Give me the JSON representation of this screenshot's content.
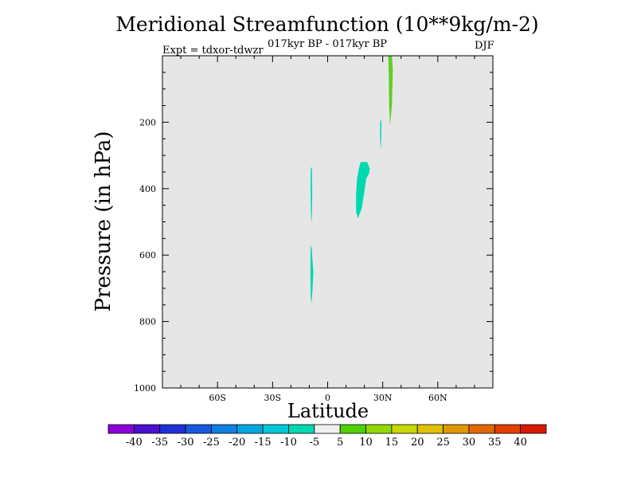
{
  "chart_data": {
    "type": "heatmap",
    "title": "Meridional Streamfunction (10**9kg/m-2)",
    "subtitle": "017kyr BP - 017kyr BP",
    "experiment_label": "Expt = tdxor-tdwzr",
    "season_label": "DJF",
    "xlabel": "Latitude",
    "ylabel": "Pressure (in hPa)",
    "x_ticks": [
      {
        "value": -60,
        "label": "60S"
      },
      {
        "value": -30,
        "label": "30S"
      },
      {
        "value": 0,
        "label": "0"
      },
      {
        "value": 30,
        "label": "30N"
      },
      {
        "value": 60,
        "label": "60N"
      }
    ],
    "y_ticks": [
      {
        "value": 200,
        "label": "200"
      },
      {
        "value": 400,
        "label": "400"
      },
      {
        "value": 600,
        "label": "600"
      },
      {
        "value": 800,
        "label": "800"
      },
      {
        "value": 1000,
        "label": "1000"
      }
    ],
    "xlim": [
      -90,
      90
    ],
    "ylim": [
      1000,
      0
    ],
    "background_color": "#e6e6e6",
    "colorbar": {
      "labels": [
        "-40",
        "-35",
        "-30",
        "-25",
        "-20",
        "-15",
        "-10",
        "-5",
        "5",
        "10",
        "15",
        "20",
        "25",
        "30",
        "35",
        "40"
      ],
      "colors": [
        "#8a00d8",
        "#4a10d0",
        "#2030d8",
        "#1858e0",
        "#1080e0",
        "#00a8e0",
        "#00c8d8",
        "#00d8b0",
        "#f0f0f0",
        "#50d000",
        "#90d800",
        "#c8d800",
        "#e0c000",
        "#e09800",
        "#e06800",
        "#e04000",
        "#d81800"
      ]
    },
    "regions": [
      {
        "name": "upper-tropospheric positive (10)",
        "color": "#60d020",
        "points": [
          [
            33,
            0
          ],
          [
            35,
            0
          ],
          [
            35.5,
            40
          ],
          [
            35,
            150
          ],
          [
            34,
            210
          ],
          [
            33.5,
            150
          ],
          [
            33.3,
            60
          ]
        ]
      },
      {
        "name": "small negative patch near 29N (-10)",
        "color": "#00d8b0",
        "points": [
          [
            28.8,
            190
          ],
          [
            29.3,
            200
          ],
          [
            29.2,
            250
          ],
          [
            28.9,
            285
          ],
          [
            28.6,
            250
          ],
          [
            28.6,
            210
          ]
        ]
      },
      {
        "name": "negative cell near 18N (-10)",
        "color": "#00d8b0",
        "points": [
          [
            17,
            340
          ],
          [
            18,
            320
          ],
          [
            21.5,
            320
          ],
          [
            23,
            340
          ],
          [
            22.5,
            355
          ],
          [
            21,
            370
          ],
          [
            20,
            410
          ],
          [
            18.5,
            460
          ],
          [
            16.5,
            490
          ],
          [
            15.5,
            470
          ],
          [
            15.5,
            420
          ],
          [
            16,
            370
          ]
        ]
      },
      {
        "name": "mid-level negative near 9S (-10)",
        "color": "#00d8b0",
        "points": [
          [
            -9.2,
            335
          ],
          [
            -8.6,
            340
          ],
          [
            -8.4,
            410
          ],
          [
            -8.6,
            480
          ],
          [
            -8.9,
            505
          ],
          [
            -9.1,
            470
          ],
          [
            -9.3,
            400
          ]
        ]
      },
      {
        "name": "lower negative near 9S (-10)",
        "color": "#00d8b0",
        "points": [
          [
            -9.3,
            570
          ],
          [
            -8.7,
            580
          ],
          [
            -7.8,
            650
          ],
          [
            -8.2,
            700
          ],
          [
            -8.8,
            745
          ],
          [
            -9.2,
            730
          ],
          [
            -9.4,
            650
          ]
        ]
      }
    ]
  }
}
